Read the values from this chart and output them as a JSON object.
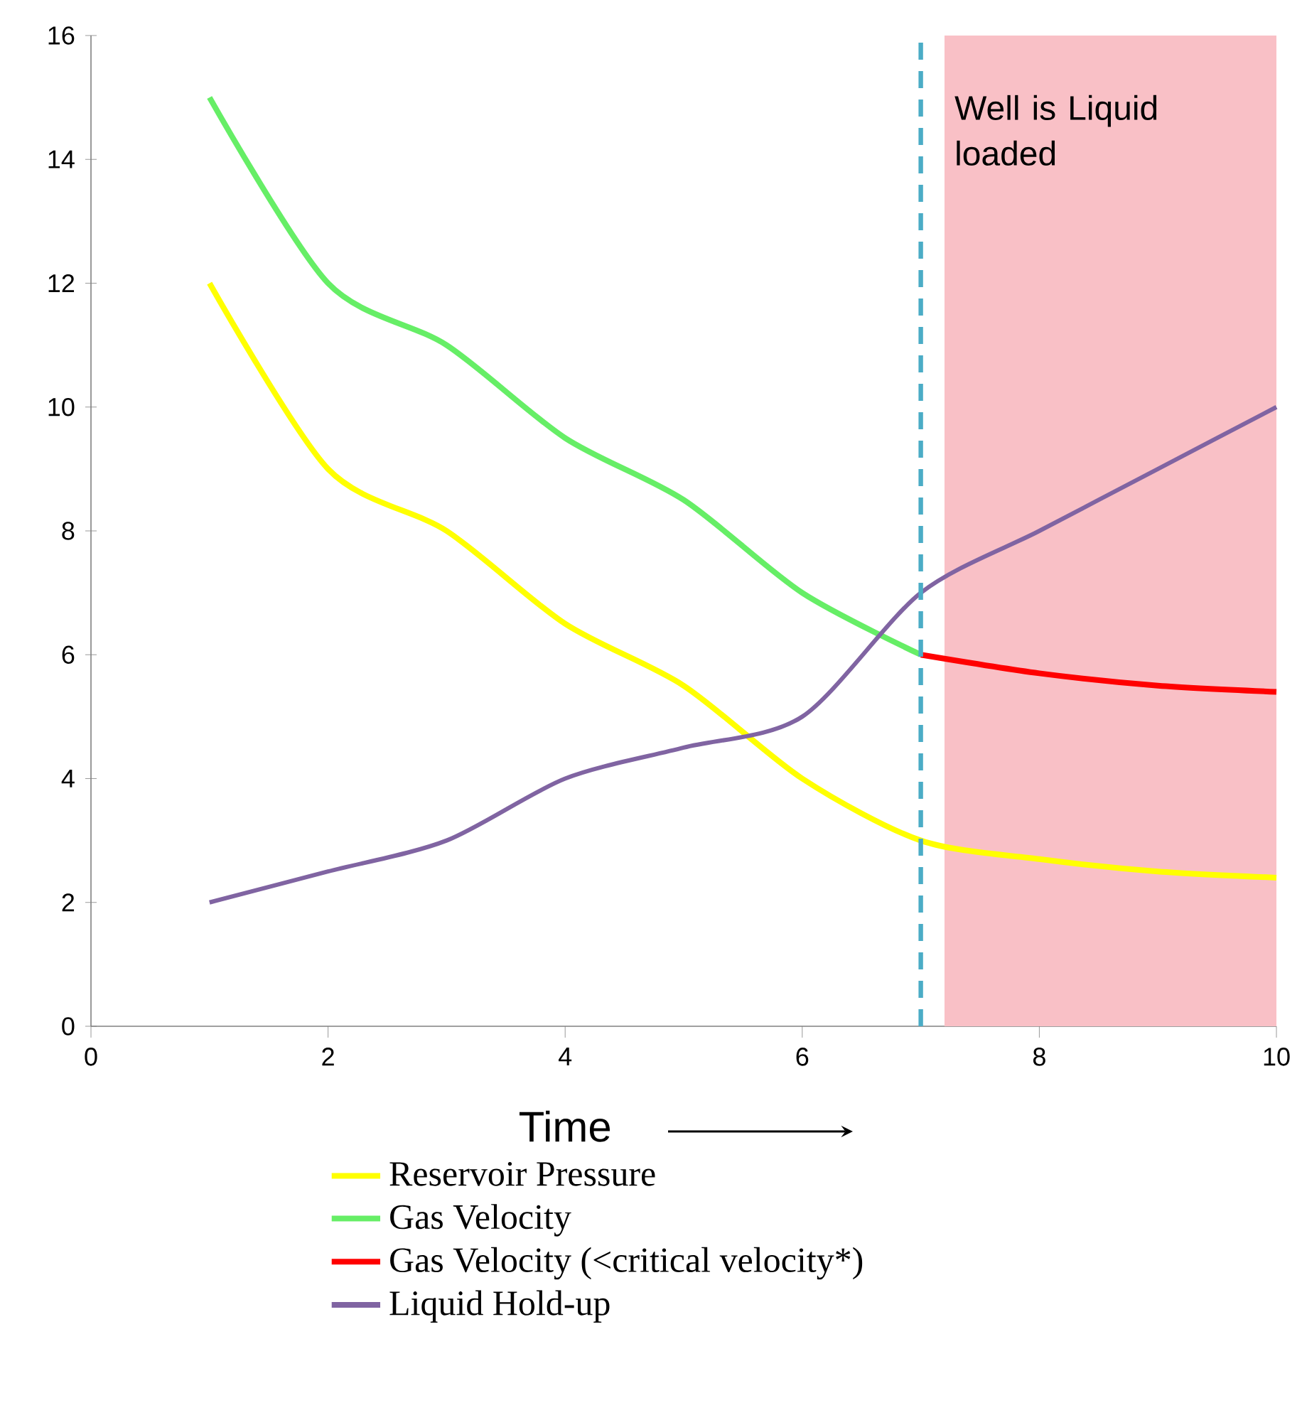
{
  "chart_data": {
    "type": "line",
    "xlabel": "Time",
    "xlim": [
      0,
      10
    ],
    "ylim": [
      0,
      16
    ],
    "xticks": [
      0,
      2,
      4,
      6,
      8,
      10
    ],
    "yticks": [
      0,
      2,
      4,
      6,
      8,
      10,
      12,
      14,
      16
    ],
    "grid": false,
    "legend": "bottom",
    "marker": "none",
    "line_style": "solid",
    "series": [
      {
        "name": "Reservoir Pressure",
        "color": "#ffff00",
        "x": [
          1,
          2,
          3,
          4,
          5,
          6,
          7,
          8,
          9,
          10
        ],
        "values": [
          12,
          9,
          8,
          6.5,
          5.5,
          4,
          3,
          2.7,
          2.5,
          2.4
        ]
      },
      {
        "name": "Gas Velocity",
        "color": "#66ee66",
        "x": [
          1,
          2,
          3,
          4,
          5,
          6,
          7
        ],
        "values": [
          15,
          12,
          11,
          9.5,
          8.5,
          7,
          6
        ]
      },
      {
        "name": "Gas Velocity (<critical velocity*)",
        "color": "#ff0000",
        "x": [
          7,
          8,
          9,
          10
        ],
        "values": [
          6,
          5.7,
          5.5,
          5.4
        ]
      },
      {
        "name": "Liquid Hold-up",
        "color": "#8064a2",
        "x": [
          1,
          2,
          3,
          4,
          5,
          6,
          7,
          8,
          9,
          10
        ],
        "values": [
          2,
          2.5,
          3,
          4,
          4.5,
          5,
          7,
          8,
          9,
          10
        ]
      }
    ],
    "ref_lines": [
      {
        "axis": "x",
        "value": 7,
        "color": "#4bacc6",
        "line_style": "dashed"
      }
    ],
    "bands": [
      {
        "axis": "x",
        "from": 7.2,
        "to": 10,
        "label": "Well is Liquid loaded",
        "color": "#f9c0c6"
      }
    ]
  }
}
